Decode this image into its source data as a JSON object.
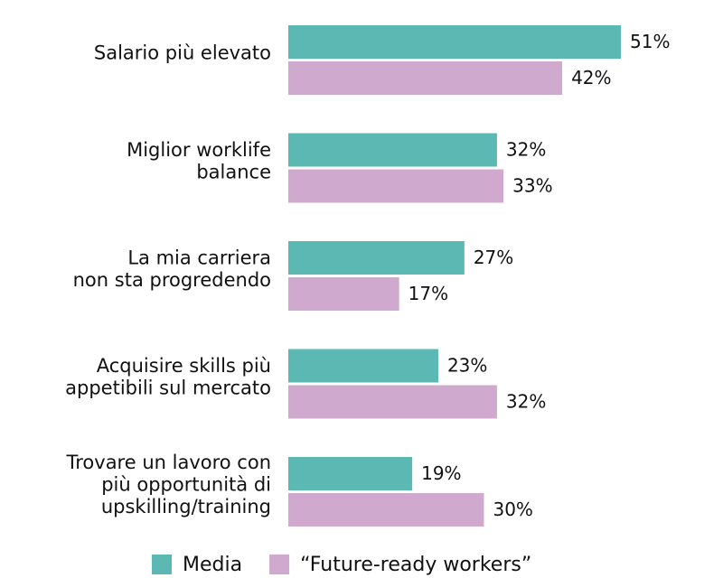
{
  "chart_data": {
    "type": "bar",
    "orientation": "horizontal",
    "categories": [
      [
        "Salario più elevato"
      ],
      [
        "Miglior worklife",
        "balance"
      ],
      [
        "La mia carriera",
        "non sta progredendo"
      ],
      [
        "Acquisire skills più",
        "appetibili sul mercato"
      ],
      [
        "Trovare un lavoro con",
        "più opportunità di",
        "upskilling/training"
      ]
    ],
    "series": [
      {
        "name": "Media",
        "color": "#5bb8b2",
        "values": [
          51,
          32,
          27,
          23,
          19
        ],
        "value_labels": [
          "51%",
          "32%",
          "27%",
          "23%",
          "19%"
        ]
      },
      {
        "name": "“Future-ready workers”",
        "color": "#d0a9cf",
        "values": [
          42,
          33,
          17,
          32,
          30
        ],
        "value_labels": [
          "42%",
          "33%",
          "17%",
          "32%",
          "30%"
        ]
      }
    ],
    "legend": "bottom"
  }
}
